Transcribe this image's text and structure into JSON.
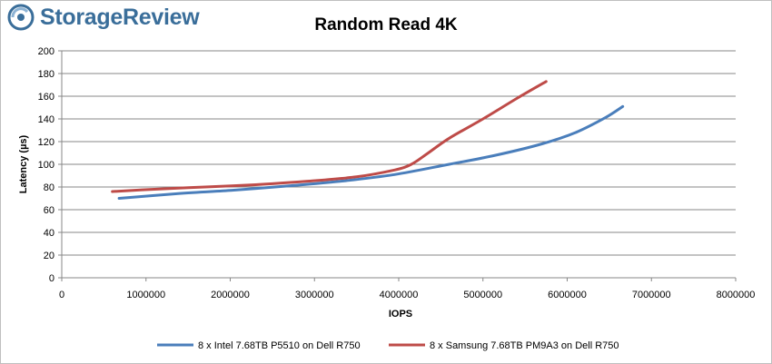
{
  "brand": {
    "logo_text": "StorageReview"
  },
  "chart_data": {
    "type": "line",
    "title": "Random Read 4K",
    "xlabel": "IOPS",
    "ylabel": "Latency (µs)",
    "xlim": [
      0,
      8000000
    ],
    "ylim": [
      0,
      200
    ],
    "xticks": [
      0,
      1000000,
      2000000,
      3000000,
      4000000,
      5000000,
      6000000,
      7000000,
      8000000
    ],
    "yticks": [
      0,
      20,
      40,
      60,
      80,
      100,
      120,
      140,
      160,
      180,
      200
    ],
    "xtick_labels": [
      "0",
      "1000000",
      "2000000",
      "3000000",
      "4000000",
      "5000000",
      "6000000",
      "7000000",
      "8000000"
    ],
    "ytick_labels": [
      "0",
      "20",
      "40",
      "60",
      "80",
      "100",
      "120",
      "140",
      "160",
      "180",
      "200"
    ],
    "grid": "horizontal",
    "legend_position": "bottom",
    "series": [
      {
        "name": "8 x Intel 7.68TB P5510 on Dell R750",
        "color": "#4a7ebb",
        "x": [
          680000,
          1350000,
          2000000,
          2700000,
          3300000,
          3950000,
          4600000,
          5150000,
          5700000,
          6100000,
          6450000,
          6660000
        ],
        "y": [
          70,
          74,
          77,
          81,
          85,
          91,
          100,
          108,
          118,
          128,
          141,
          151
        ]
      },
      {
        "name": "8 x Samsung 7.68TB PM9A3 on Dell R750",
        "color": "#be4b48",
        "x": [
          600000,
          1100000,
          1700000,
          2300000,
          2900000,
          3500000,
          3950000,
          4150000,
          4350000,
          4600000,
          5000000,
          5400000,
          5750000
        ],
        "y": [
          76,
          78,
          80,
          82,
          85,
          89,
          95,
          100,
          110,
          123,
          140,
          158,
          173
        ]
      }
    ]
  }
}
